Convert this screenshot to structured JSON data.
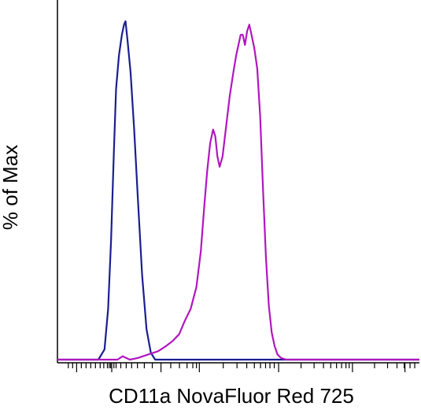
{
  "chart_data": {
    "type": "line",
    "title": "",
    "xlabel": "CD11a NovaFluor Red 725",
    "ylabel": "% of Max",
    "x_scale": "biexponential",
    "ylim": [
      0,
      100
    ],
    "grid": false,
    "legend": "none",
    "series": [
      {
        "color": "#1b1f8f",
        "points": [
          [
            0.0,
            0
          ],
          [
            0.113,
            0
          ],
          [
            0.13,
            3
          ],
          [
            0.14,
            15
          ],
          [
            0.148,
            35
          ],
          [
            0.156,
            62
          ],
          [
            0.162,
            80
          ],
          [
            0.17,
            90
          ],
          [
            0.178,
            96
          ],
          [
            0.184,
            99
          ],
          [
            0.188,
            100
          ],
          [
            0.194,
            94
          ],
          [
            0.202,
            85
          ],
          [
            0.212,
            68
          ],
          [
            0.222,
            48
          ],
          [
            0.234,
            25
          ],
          [
            0.246,
            9
          ],
          [
            0.258,
            2
          ],
          [
            0.27,
            0
          ],
          [
            1.0,
            0
          ]
        ]
      },
      {
        "color": "#b117bf",
        "points": [
          [
            0.0,
            0
          ],
          [
            0.166,
            0
          ],
          [
            0.18,
            1
          ],
          [
            0.2,
            0
          ],
          [
            0.222,
            0.5
          ],
          [
            0.25,
            1.5
          ],
          [
            0.278,
            2.5
          ],
          [
            0.3,
            4
          ],
          [
            0.318,
            5.5
          ],
          [
            0.336,
            7.5
          ],
          [
            0.352,
            11.5
          ],
          [
            0.368,
            15
          ],
          [
            0.384,
            21.5
          ],
          [
            0.396,
            32
          ],
          [
            0.406,
            46
          ],
          [
            0.414,
            56
          ],
          [
            0.422,
            64
          ],
          [
            0.43,
            68
          ],
          [
            0.436,
            66
          ],
          [
            0.442,
            60
          ],
          [
            0.448,
            57
          ],
          [
            0.456,
            60
          ],
          [
            0.466,
            69
          ],
          [
            0.476,
            78
          ],
          [
            0.486,
            85
          ],
          [
            0.494,
            90
          ],
          [
            0.5,
            93
          ],
          [
            0.506,
            96
          ],
          [
            0.512,
            96
          ],
          [
            0.518,
            93
          ],
          [
            0.524,
            97
          ],
          [
            0.53,
            99
          ],
          [
            0.536,
            96
          ],
          [
            0.544,
            92
          ],
          [
            0.552,
            86
          ],
          [
            0.56,
            72
          ],
          [
            0.568,
            50
          ],
          [
            0.576,
            30
          ],
          [
            0.584,
            16
          ],
          [
            0.592,
            8
          ],
          [
            0.6,
            4
          ],
          [
            0.608,
            1.5
          ],
          [
            0.618,
            0.5
          ],
          [
            0.632,
            0
          ],
          [
            1.0,
            0
          ]
        ]
      }
    ],
    "x_major_ticks": [
      0.053,
      0.15,
      0.286,
      0.392,
      0.611,
      0.815,
      0.96
    ],
    "x_minor_ticks": [
      0.03,
      0.042,
      0.066,
      0.079,
      0.092,
      0.105,
      0.118,
      0.128,
      0.138,
      0.143,
      0.147,
      0.156,
      0.162,
      0.175,
      0.19,
      0.205,
      0.221,
      0.24,
      0.262,
      0.313,
      0.337,
      0.358,
      0.374,
      0.384,
      0.458,
      0.496,
      0.523,
      0.544,
      0.561,
      0.575,
      0.587,
      0.599,
      0.673,
      0.709,
      0.735,
      0.755,
      0.771,
      0.785,
      0.797,
      0.806,
      0.876,
      0.912,
      0.938,
      0.958,
      0.974,
      0.987
    ]
  }
}
